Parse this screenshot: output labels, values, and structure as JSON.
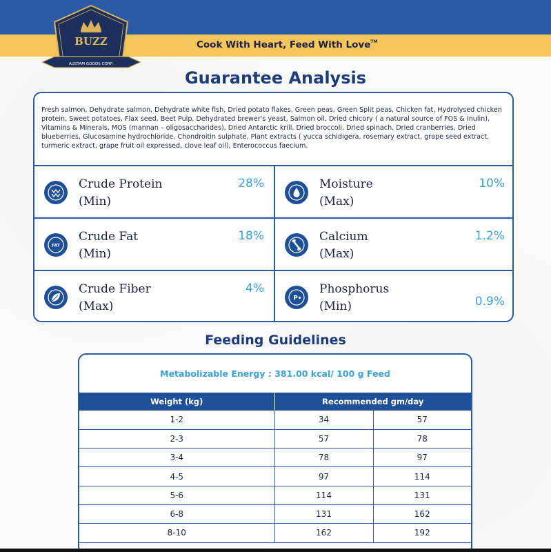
{
  "header": {
    "tagline": "Cook With Heart, Feed With Love",
    "tagline_mark": "TM",
    "logo": {
      "brand": "BUZZ",
      "company": "AUSTAM GOODS CORP.",
      "colors": {
        "navy": "#1d2f5c",
        "gold": "#d9b45a"
      }
    },
    "colors": {
      "top_band": "#2a5aa6",
      "second_band": "#f7c65a"
    }
  },
  "guarantee": {
    "title": "Guarantee Analysis",
    "ingredients": "Fresh salmon, Dehydrate salmon, Dehydrate white fish, Dried potato flakes, Green peas, Green Split peas, Chicken fat, Hydrolysed chicken protein, Sweet potatoes, Flax seed, Beet Pulp, Dehydrated brewer's yeast, Salmon oil, Dried chicory ( a natural source of FOS & Inulin), Vitamins & Minerals, MOS (mannan – oligosaccharides), Dried Antarctic krill, Dried broccoli, Dried spinach, Dried cranberries, Dried blueberries, Glucosamine hydrochloride, Chondroitin sulphate, Plant extracts ( yucca schidigera, rosemary extract, grape seed extract, turmeric extract, grape fruit oil expressed, clove leaf oil), Enterococcus faecium.",
    "nutrients": [
      {
        "name": "Crude Protein",
        "qualifier": "(Min)",
        "value": "28%",
        "icon": "protein-icon"
      },
      {
        "name": "Moisture",
        "qualifier": "(Max)",
        "value": "10%",
        "icon": "water-drop-icon"
      },
      {
        "name": "Crude Fat",
        "qualifier": "(Min)",
        "value": "18%",
        "icon": "fat-icon",
        "icon_text": "FAT"
      },
      {
        "name": "Calcium",
        "qualifier": "(Max)",
        "value": "1.2%",
        "icon": "bone-icon"
      },
      {
        "name": "Crude Fiber",
        "qualifier": "(Max)",
        "value": "4%",
        "icon": "leaf-icon"
      },
      {
        "name": "Phosphorus",
        "qualifier": "(Min)",
        "value": "0.9%",
        "icon": "phosphorus-icon",
        "icon_text": "P"
      }
    ],
    "colors": {
      "border": "#2a5aa6",
      "value": "#3aa0d6",
      "icon_bg": "#1f4f96"
    }
  },
  "feeding": {
    "title": "Feeding Guidelines",
    "energy": "Metabolizable Energy : 381.00 kcal/ 100 g Feed",
    "headers": {
      "weight": "Weight (kg)",
      "recommended": "Recommended gm/day"
    },
    "rows": [
      {
        "weight": "1-2",
        "low": "34",
        "high": "57"
      },
      {
        "weight": "2-3",
        "low": "57",
        "high": "78"
      },
      {
        "weight": "3-4",
        "low": "78",
        "high": "97"
      },
      {
        "weight": "4-5",
        "low": "97",
        "high": "114"
      },
      {
        "weight": "5-6",
        "low": "114",
        "high": "131"
      },
      {
        "weight": "6-8",
        "low": "131",
        "high": "162"
      },
      {
        "weight": "8-10",
        "low": "162",
        "high": "192"
      }
    ]
  }
}
